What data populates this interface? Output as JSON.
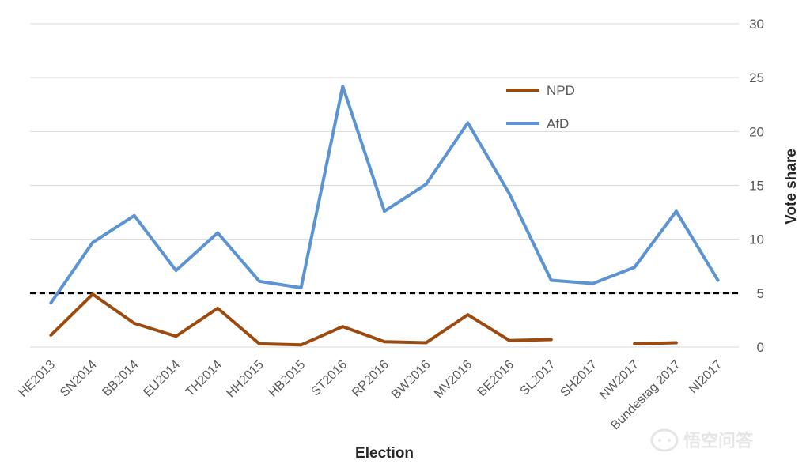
{
  "chart_data": {
    "type": "line",
    "title": "",
    "xlabel": "Election",
    "ylabel": "Vote share",
    "ylim": [
      0,
      30
    ],
    "y_ticks": [
      "0",
      "5",
      "10",
      "15",
      "20",
      "25",
      "30"
    ],
    "y_axis_side": "right",
    "grid": true,
    "legend_position": "top-center",
    "categories": [
      "HE2013",
      "SN2014",
      "BB2014",
      "EU2014",
      "TH2014",
      "HH2015",
      "HB2015",
      "ST2016",
      "RP2016",
      "BW2016",
      "MV2016",
      "BE2016",
      "SL2017",
      "SH2017",
      "NW2017",
      "Bundestag 2017",
      "NI2017"
    ],
    "series": [
      {
        "name": "NPD",
        "color": "#9c4a0d",
        "values": [
          1.1,
          4.9,
          2.2,
          1.0,
          3.6,
          0.3,
          0.2,
          1.9,
          0.5,
          0.4,
          3.0,
          0.6,
          0.7,
          null,
          0.3,
          0.4,
          null
        ]
      },
      {
        "name": "AfD",
        "color": "#5b93d3",
        "values": [
          4.1,
          9.7,
          12.2,
          7.1,
          10.6,
          6.1,
          5.5,
          24.2,
          12.6,
          15.1,
          20.8,
          14.2,
          6.2,
          5.9,
          7.4,
          12.6,
          6.2
        ]
      }
    ],
    "reference_line": {
      "value": 5,
      "style": "dashed",
      "color": "#000000"
    }
  },
  "watermark": {
    "icon": "chat-bubble-icon",
    "text": "悟空问答"
  }
}
